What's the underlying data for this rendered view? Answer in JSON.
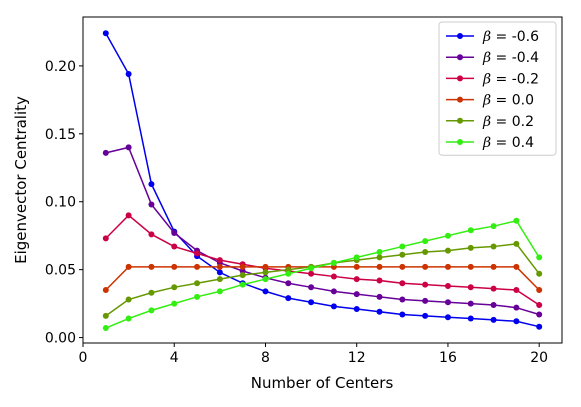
{
  "chart_data": {
    "type": "line",
    "xlabel": "Number of Centers",
    "ylabel": "Eigenvector Centrality",
    "xlim": [
      0,
      21
    ],
    "ylim": [
      -0.004,
      0.236
    ],
    "xticks": [
      0,
      4,
      8,
      12,
      16,
      20
    ],
    "xtick_labels": [
      "0",
      "4",
      "8",
      "12",
      "16",
      "20"
    ],
    "yticks": [
      0.0,
      0.05,
      0.1,
      0.15,
      0.2
    ],
    "ytick_labels": [
      "0.00",
      "0.05",
      "0.10",
      "0.15",
      "0.20"
    ],
    "grid": false,
    "legend_position": "top-right",
    "legend_symbol": "β",
    "x": [
      1,
      2,
      3,
      4,
      5,
      6,
      7,
      8,
      9,
      10,
      11,
      12,
      13,
      14,
      15,
      16,
      17,
      18,
      19,
      20
    ],
    "series": [
      {
        "name": " = -0.6",
        "color": "#0000ee",
        "values": [
          0.224,
          0.194,
          0.113,
          0.078,
          0.06,
          0.048,
          0.04,
          0.034,
          0.029,
          0.026,
          0.023,
          0.021,
          0.019,
          0.017,
          0.016,
          0.015,
          0.014,
          0.013,
          0.012,
          0.008
        ]
      },
      {
        "name": " = -0.4",
        "color": "#660099",
        "values": [
          0.136,
          0.14,
          0.098,
          0.077,
          0.064,
          0.055,
          0.049,
          0.044,
          0.04,
          0.037,
          0.034,
          0.032,
          0.03,
          0.028,
          0.027,
          0.026,
          0.025,
          0.024,
          0.022,
          0.017
        ]
      },
      {
        "name": " = -0.2",
        "color": "#cc0044",
        "values": [
          0.073,
          0.09,
          0.076,
          0.067,
          0.062,
          0.057,
          0.054,
          0.051,
          0.049,
          0.047,
          0.045,
          0.043,
          0.042,
          0.04,
          0.039,
          0.038,
          0.037,
          0.036,
          0.035,
          0.024
        ]
      },
      {
        "name": " = 0.0",
        "color": "#cc3300",
        "values": [
          0.035,
          0.052,
          0.052,
          0.052,
          0.052,
          0.052,
          0.052,
          0.052,
          0.052,
          0.052,
          0.052,
          0.052,
          0.052,
          0.052,
          0.052,
          0.052,
          0.052,
          0.052,
          0.052,
          0.035
        ]
      },
      {
        "name": " = 0.2",
        "color": "#669900",
        "values": [
          0.016,
          0.028,
          0.033,
          0.037,
          0.04,
          0.043,
          0.046,
          0.048,
          0.05,
          0.052,
          0.055,
          0.057,
          0.059,
          0.061,
          0.063,
          0.064,
          0.066,
          0.067,
          0.069,
          0.047
        ]
      },
      {
        "name": " = 0.4",
        "color": "#33ee11",
        "values": [
          0.007,
          0.014,
          0.02,
          0.025,
          0.03,
          0.034,
          0.039,
          0.043,
          0.047,
          0.051,
          0.055,
          0.059,
          0.063,
          0.067,
          0.071,
          0.075,
          0.079,
          0.082,
          0.086,
          0.059
        ]
      }
    ]
  }
}
